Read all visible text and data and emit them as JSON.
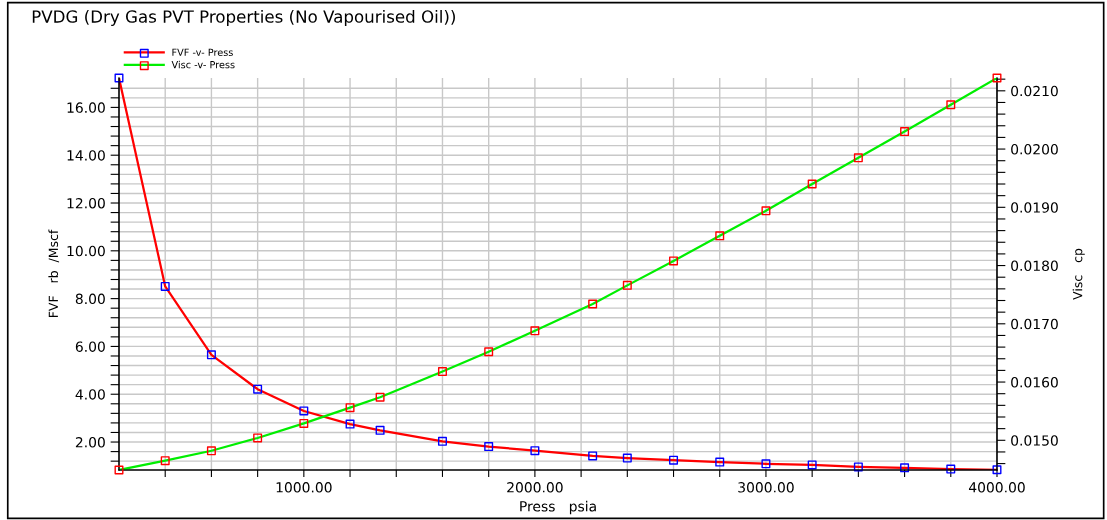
{
  "chart_data": {
    "type": "line",
    "title": "PVDG (Dry Gas PVT Properties (No Vapourised Oil))",
    "xlabel": "Press   psia",
    "ylabel": "FVF   rb  /Mscf",
    "y2label": "Visc   cp",
    "x": [
      200,
      400,
      600,
      800,
      1000,
      1200,
      1330,
      1600,
      1800,
      2000,
      2250,
      2400,
      2600,
      2800,
      3000,
      3200,
      3400,
      3600,
      3800,
      4000
    ],
    "series": [
      {
        "name": "FVF -v- Press",
        "color": "#ff0000",
        "colors": [
          "#0000ff",
          "#0000ff",
          "#0000ff",
          "#0000ff",
          "#0000ff",
          "#0000ff",
          "#0000ff",
          "#0000ff",
          "#0000ff",
          "#0000ff",
          "#0000ff",
          "#0000ff",
          "#0000ff",
          "#0000ff",
          "#0000ff",
          "#0000ff",
          "#0000ff",
          "#0000ff",
          "#0000ff",
          "#0000ff"
        ],
        "values": [
          17.23,
          8.51,
          5.65,
          4.21,
          3.3,
          2.75,
          2.49,
          2.03,
          1.81,
          1.64,
          1.42,
          1.33,
          1.24,
          1.16,
          1.09,
          1.04,
          0.96,
          0.92,
          0.87,
          0.84
        ]
      },
      {
        "name": "Visc -v- Press",
        "color": "#00ee00",
        "axis": "y2",
        "colors": [
          "#ff0000",
          "#ff0000",
          "#ff0000",
          "#ff0000",
          "#ff0000",
          "#ff0000",
          "#ff0000",
          "#ff0000",
          "#ff0000",
          "#ff0000",
          "#ff0000",
          "#ff0000",
          "#ff0000",
          "#ff0000",
          "#ff0000",
          "#ff0000",
          "#ff0000",
          "#ff0000",
          "#ff0000",
          "#ff0000"
        ],
        "values": [
          0.01449,
          0.01465,
          0.01482,
          0.01504,
          0.01529,
          0.01556,
          0.01574,
          0.01618,
          0.01652,
          0.01688,
          0.01734,
          0.01766,
          0.01808,
          0.01851,
          0.01894,
          0.0194,
          0.01985,
          0.0203,
          0.02076,
          0.02122
        ]
      }
    ],
    "xlim": [
      200,
      4000
    ],
    "xticks": [
      {
        "value": 400,
        "label": null
      },
      {
        "value": 600,
        "label": null
      },
      {
        "value": 800,
        "label": null
      },
      {
        "value": 1000,
        "label": "1000.00"
      },
      {
        "value": 1200,
        "label": null
      },
      {
        "value": 1400,
        "label": null
      },
      {
        "value": 1600,
        "label": null
      },
      {
        "value": 1800,
        "label": null
      },
      {
        "value": 2000,
        "label": "2000.00"
      },
      {
        "value": 2200,
        "label": null
      },
      {
        "value": 2400,
        "label": null
      },
      {
        "value": 2600,
        "label": null
      },
      {
        "value": 2800,
        "label": null
      },
      {
        "value": 3000,
        "label": "3000.00"
      },
      {
        "value": 3200,
        "label": null
      },
      {
        "value": 3400,
        "label": null
      },
      {
        "value": 3600,
        "label": null
      },
      {
        "value": 3800,
        "label": null
      },
      {
        "value": 4000,
        "label": "4000.00"
      }
    ],
    "ylim": [
      0.83,
      17.23
    ],
    "yticks": [
      {
        "value": 1.2,
        "label": null
      },
      {
        "value": 1.6,
        "label": null
      },
      {
        "value": 2,
        "label": "2.00"
      },
      {
        "value": 2.4,
        "label": null
      },
      {
        "value": 2.8,
        "label": null
      },
      {
        "value": 3.2,
        "label": null
      },
      {
        "value": 3.6,
        "label": null
      },
      {
        "value": 4,
        "label": "4.00"
      },
      {
        "value": 4.4,
        "label": null
      },
      {
        "value": 4.8,
        "label": null
      },
      {
        "value": 5.2,
        "label": null
      },
      {
        "value": 5.6,
        "label": null
      },
      {
        "value": 6,
        "label": "6.00"
      },
      {
        "value": 6.4,
        "label": null
      },
      {
        "value": 6.8,
        "label": null
      },
      {
        "value": 7.2,
        "label": null
      },
      {
        "value": 7.6,
        "label": null
      },
      {
        "value": 8,
        "label": "8.00"
      },
      {
        "value": 8.4,
        "label": null
      },
      {
        "value": 8.8,
        "label": null
      },
      {
        "value": 9.2,
        "label": null
      },
      {
        "value": 9.6,
        "label": null
      },
      {
        "value": 10,
        "label": "10.00"
      },
      {
        "value": 10.4,
        "label": null
      },
      {
        "value": 10.8,
        "label": null
      },
      {
        "value": 11.2,
        "label": null
      },
      {
        "value": 11.6,
        "label": null
      },
      {
        "value": 12,
        "label": "12.00"
      },
      {
        "value": 12.4,
        "label": null
      },
      {
        "value": 12.8,
        "label": null
      },
      {
        "value": 13.2,
        "label": null
      },
      {
        "value": 13.6,
        "label": null
      },
      {
        "value": 14,
        "label": "14.00"
      },
      {
        "value": 14.4,
        "label": null
      },
      {
        "value": 14.8,
        "label": null
      },
      {
        "value": 15.2,
        "label": null
      },
      {
        "value": 15.6,
        "label": null
      },
      {
        "value": 16,
        "label": "16.00"
      },
      {
        "value": 16.4,
        "label": null
      },
      {
        "value": 16.8,
        "label": null
      }
    ],
    "y2lim": [
      0.01449,
      0.02122
    ],
    "y2ticks": [
      {
        "value": 0.0146,
        "label": null
      },
      {
        "value": 0.0148,
        "label": null
      },
      {
        "value": 0.015,
        "label": "0.0150"
      },
      {
        "value": 0.0152,
        "label": null
      },
      {
        "value": 0.0154,
        "label": null
      },
      {
        "value": 0.0156,
        "label": null
      },
      {
        "value": 0.0158,
        "label": null
      },
      {
        "value": 0.016,
        "label": "0.0160"
      },
      {
        "value": 0.0162,
        "label": null
      },
      {
        "value": 0.0164,
        "label": null
      },
      {
        "value": 0.0166,
        "label": null
      },
      {
        "value": 0.0168,
        "label": null
      },
      {
        "value": 0.017,
        "label": "0.0170"
      },
      {
        "value": 0.0172,
        "label": null
      },
      {
        "value": 0.0174,
        "label": null
      },
      {
        "value": 0.0176,
        "label": null
      },
      {
        "value": 0.0178,
        "label": null
      },
      {
        "value": 0.018,
        "label": "0.0180"
      },
      {
        "value": 0.0182,
        "label": null
      },
      {
        "value": 0.0184,
        "label": null
      },
      {
        "value": 0.0186,
        "label": null
      },
      {
        "value": 0.0188,
        "label": null
      },
      {
        "value": 0.019,
        "label": "0.0190"
      },
      {
        "value": 0.0192,
        "label": null
      },
      {
        "value": 0.0194,
        "label": null
      },
      {
        "value": 0.0196,
        "label": null
      },
      {
        "value": 0.0198,
        "label": null
      },
      {
        "value": 0.02,
        "label": "0.0200"
      },
      {
        "value": 0.0202,
        "label": null
      },
      {
        "value": 0.0204,
        "label": null
      },
      {
        "value": 0.0206,
        "label": null
      },
      {
        "value": 0.0208,
        "label": null
      },
      {
        "value": 0.021,
        "label": "0.0210"
      },
      {
        "value": 0.0212,
        "label": null
      }
    ],
    "grid": true,
    "legend": "top left",
    "marker": "square",
    "line_style": "solid"
  }
}
